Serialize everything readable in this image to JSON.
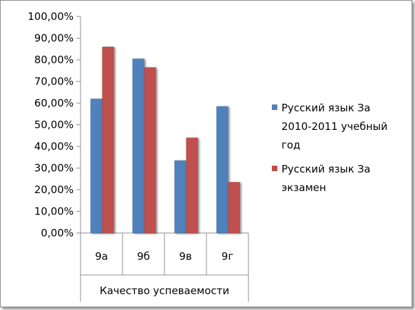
{
  "chart_data": {
    "type": "bar",
    "title": "",
    "xlabel": "",
    "ylabel": "",
    "categories": [
      "9а",
      "9б",
      "9в",
      "9г"
    ],
    "group_label": "Качество успеваемости",
    "ylim": [
      0,
      100
    ],
    "yticks": [
      0,
      10,
      20,
      30,
      40,
      50,
      60,
      70,
      80,
      90,
      100
    ],
    "ytick_labels": [
      "0,00%",
      "10,00%",
      "20,00%",
      "30,00%",
      "40,00%",
      "50,00%",
      "60,00%",
      "70,00%",
      "80,00%",
      "90,00%",
      "100,00%"
    ],
    "grid": false,
    "legend_position": "right",
    "series": [
      {
        "name": "Русский язык За 2010-2011 учебный год",
        "legend_lines": [
          "Русский язык За",
          "2010-2011 учебный",
          "год"
        ],
        "color": "#4f81bd",
        "values": [
          62,
          80.5,
          33.5,
          58.5
        ]
      },
      {
        "name": "Русский язык За экзамен",
        "legend_lines": [
          "Русский язык За",
          "экзамен"
        ],
        "color": "#c0504d",
        "values": [
          86,
          76.5,
          44,
          23.5
        ]
      }
    ]
  }
}
